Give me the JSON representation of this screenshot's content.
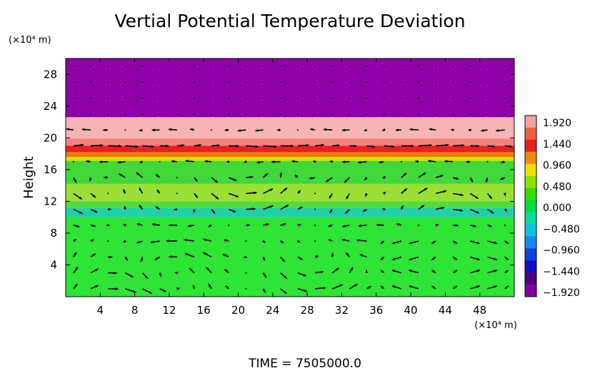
{
  "chart_data": {
    "type": "heatmap",
    "title": "Vertial Potential Temperature Deviation",
    "ylabel": "Height",
    "yunit": "(×10⁴ m)",
    "xunit": "(×10⁴ m)",
    "xlim": [
      0,
      52
    ],
    "ylim": [
      0,
      30
    ],
    "x_ticks": [
      "4",
      "8",
      "12",
      "16",
      "20",
      "24",
      "28",
      "32",
      "36",
      "40",
      "44",
      "48"
    ],
    "y_ticks": [
      "4",
      "8",
      "12",
      "16",
      "20",
      "24",
      "28"
    ],
    "x_tick_values": [
      4,
      8,
      12,
      16,
      20,
      24,
      28,
      32,
      36,
      40,
      44,
      48
    ],
    "y_tick_values": [
      4,
      8,
      12,
      16,
      20,
      24,
      28
    ],
    "colorbar": {
      "labels": [
        "1.920",
        "1.440",
        "0.960",
        "0.480",
        "0.000",
        "−0.480",
        "−0.960",
        "−1.440",
        "−1.920"
      ],
      "values": [
        1.92,
        1.44,
        0.96,
        0.48,
        0.0,
        -0.48,
        -0.96,
        -1.44,
        -1.92
      ],
      "colors": [
        "#f4a0a0",
        "#f06040",
        "#e62020",
        "#f08a10",
        "#f0e000",
        "#8ee000",
        "#30e000",
        "#00dd40",
        "#10d8a0",
        "#10c0e0",
        "#1888f0",
        "#1040e0",
        "#1010c0",
        "#500080",
        "#8000a0"
      ]
    },
    "layers": [
      {
        "from": 22.6,
        "to": 30.0,
        "value": -1.92,
        "color": "#9000a8"
      },
      {
        "from": 19.9,
        "to": 22.6,
        "value": 1.92,
        "color": "#f6b4b4"
      },
      {
        "from": 19.0,
        "to": 19.9,
        "value": 1.6,
        "color": "#f58080"
      },
      {
        "from": 18.2,
        "to": 19.0,
        "value": 1.3,
        "color": "#e82020"
      },
      {
        "from": 17.6,
        "to": 18.2,
        "value": 0.96,
        "color": "#f07a10"
      },
      {
        "from": 17.1,
        "to": 17.6,
        "value": 0.6,
        "color": "#d8e000"
      },
      {
        "from": 14.2,
        "to": 17.1,
        "value": 0.2,
        "color": "#40d83a"
      },
      {
        "from": 12.0,
        "to": 14.2,
        "value": 0.4,
        "color": "#9ae034"
      },
      {
        "from": 11.2,
        "to": 12.0,
        "value": 0.2,
        "color": "#50dc3c"
      },
      {
        "from": 10.0,
        "to": 11.2,
        "value": -0.3,
        "color": "#20d0a8"
      },
      {
        "from": 0.0,
        "to": 10.0,
        "value": 0.05,
        "color": "#2ee434"
      }
    ],
    "vector_grid": {
      "nx": 26,
      "ny": 15,
      "x0": 0.9,
      "dx": 2.0,
      "y0": 1.0,
      "dy": 2.0
    },
    "time_label": "TIME = 7505000.0"
  }
}
